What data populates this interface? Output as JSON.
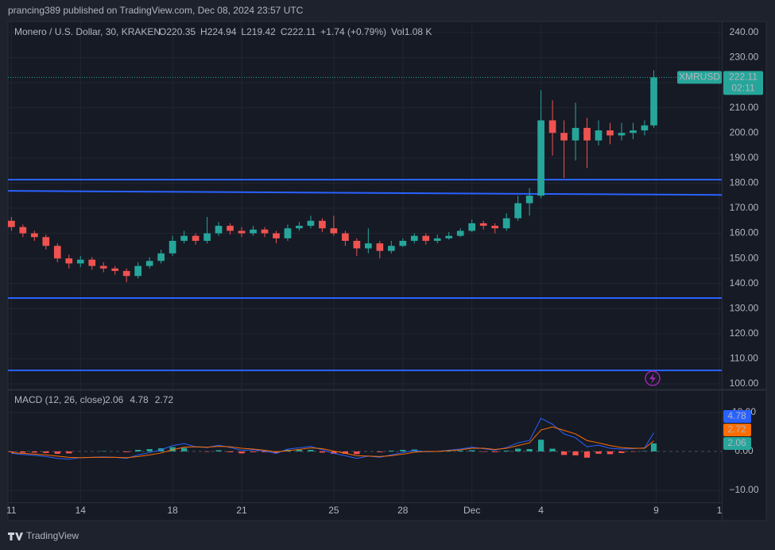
{
  "header": {
    "published": "prancing389 published on TradingView.com, Dec 08, 2024 23:57 UTC"
  },
  "footer": {
    "brand": "TradingView"
  },
  "chart_data": [
    {
      "type": "candlestick",
      "title": "Monero / U.S. Dollar, 30, KRAKEN",
      "ohlc": [
        {
          "label": "O",
          "value": "220.35"
        },
        {
          "label": "H",
          "value": "224.94"
        },
        {
          "label": "L",
          "value": "219.42"
        },
        {
          "label": "C",
          "value": "222.11"
        },
        {
          "value": "+1.74 (+0.79%)"
        },
        {
          "label": "Vol",
          "value": "1.08 K"
        }
      ],
      "symbol": "XMRUSD",
      "last_price": 222.11,
      "countdown": "02:11",
      "color_up": "#26a69a",
      "color_down": "#ef5350",
      "x": [
        0,
        0.5,
        1,
        1.5,
        2,
        2.5,
        3,
        3.5,
        4,
        4.5,
        5,
        5.5,
        6,
        6.5,
        7,
        7.5,
        8,
        8.5,
        9,
        9.5,
        10,
        10.5,
        11,
        11.5,
        12,
        12.5,
        13,
        13.5,
        14,
        14.5,
        15,
        15.5,
        16,
        16.5,
        17,
        17.5,
        18,
        18.5,
        19,
        19.5,
        20,
        20.5,
        21,
        21.5,
        22,
        22.5,
        23,
        23.5,
        24,
        24.5,
        25,
        25.5,
        26,
        26.5,
        27,
        27.5,
        27.9
      ],
      "open": [
        165,
        162.5,
        160,
        158.5,
        155,
        150,
        148,
        149.5,
        147,
        146,
        145,
        143,
        147,
        149,
        152,
        157,
        159,
        157,
        160,
        163,
        161,
        160,
        161.5,
        160,
        158,
        162,
        163,
        165,
        162,
        160,
        157,
        154,
        156,
        153,
        155,
        157,
        159,
        157,
        158,
        159,
        161,
        164,
        163,
        162,
        166,
        172,
        175,
        205,
        200,
        197,
        202,
        197,
        201,
        199,
        200,
        201,
        203
      ],
      "high": [
        166.5,
        163.5,
        161,
        159.5,
        156,
        151.5,
        151,
        150.5,
        148.5,
        147,
        146,
        148.5,
        150.5,
        153.5,
        159,
        161,
        160,
        166.5,
        164.5,
        164,
        162.5,
        163,
        162.5,
        161,
        163.5,
        164.5,
        167,
        166,
        167,
        161,
        158,
        162,
        157,
        157,
        158,
        160,
        160,
        159.5,
        160.5,
        162,
        165.5,
        165,
        164,
        168,
        175,
        178,
        217,
        213,
        205,
        212,
        206,
        205,
        204,
        204,
        204,
        205,
        224.94
      ],
      "low": [
        161,
        158.5,
        157,
        153.5,
        148.5,
        146,
        146.5,
        145.5,
        144.5,
        143.5,
        140.5,
        142,
        146,
        148,
        151,
        156,
        155.5,
        156,
        159,
        159.5,
        158.5,
        159,
        158.5,
        156,
        157,
        161,
        162,
        160.5,
        159,
        155,
        151,
        152,
        150,
        152,
        154.5,
        156,
        155.5,
        156,
        157.5,
        158.5,
        160.5,
        161.5,
        160,
        161,
        165,
        167,
        174,
        191,
        182,
        189,
        186,
        195,
        195.5,
        197,
        197.5,
        199,
        202
      ],
      "close": [
        162.5,
        160,
        158.5,
        155,
        150,
        148,
        149.5,
        147,
        146,
        145,
        143,
        147,
        149,
        152,
        157,
        159,
        157,
        160,
        163,
        161,
        160,
        161.5,
        160,
        158,
        162,
        163,
        165,
        162,
        160,
        157,
        154,
        156,
        153,
        155,
        157,
        159,
        157,
        158,
        159,
        161,
        164,
        163,
        162,
        166,
        172,
        175,
        205,
        200,
        197,
        202,
        197,
        201,
        199,
        200,
        201,
        203,
        222.11
      ],
      "horizontal_lines": {
        "color": "#2962ff",
        "lines": [
          {
            "y": [
              181.4,
              181.4
            ]
          },
          {
            "y": [
              176.9,
              175.3
            ]
          },
          {
            "y": [
              134.2,
              134.2
            ]
          },
          {
            "y": [
              105.4,
              105.4
            ]
          }
        ]
      },
      "xlim": [
        -0.15,
        30.85
      ],
      "xticks": [
        {
          "value": 0,
          "label": "11"
        },
        {
          "value": 3,
          "label": "14"
        },
        {
          "value": 7,
          "label": "18"
        },
        {
          "value": 10,
          "label": "21"
        },
        {
          "value": 14,
          "label": "25"
        },
        {
          "value": 17,
          "label": "28"
        },
        {
          "value": 20,
          "label": "Dec"
        },
        {
          "value": 23,
          "label": "4"
        },
        {
          "value": 28,
          "label": "9"
        },
        {
          "value": 30.75,
          "label": "1"
        }
      ],
      "ylim": [
        97.8,
        244.4
      ],
      "yticks": [
        {
          "value": 100,
          "label": "100.00"
        },
        {
          "value": 110,
          "label": "110.00"
        },
        {
          "value": 120,
          "label": "120.00"
        },
        {
          "value": 130,
          "label": "130.00"
        },
        {
          "value": 140,
          "label": "140.00"
        },
        {
          "value": 150,
          "label": "150.00"
        },
        {
          "value": 160,
          "label": "160.00"
        },
        {
          "value": 170,
          "label": "170.00"
        },
        {
          "value": 180,
          "label": "180.00"
        },
        {
          "value": 190,
          "label": "190.00"
        },
        {
          "value": 200,
          "label": "200.00"
        },
        {
          "value": 210,
          "label": "210.00"
        },
        {
          "value": 220,
          "label": "220.00"
        },
        {
          "value": 230,
          "label": "230.00"
        },
        {
          "value": 240,
          "label": "240.00"
        }
      ],
      "grid": true
    },
    {
      "type": "macd",
      "title": "MACD (12, 26, close)",
      "series": [
        {
          "name": "Histogram",
          "color": "#26a69a",
          "color_down": "#ff5252",
          "value_label": "2.06",
          "values": [
            -0.2,
            -0.3,
            -0.3,
            -0.4,
            -0.6,
            -0.5,
            0.0,
            0.0,
            0.1,
            0.0,
            -0.2,
            0.4,
            0.6,
            0.8,
            1.1,
            0.9,
            0.0,
            -0.1,
            0.3,
            -0.2,
            -0.5,
            -0.2,
            -0.2,
            -0.4,
            0.4,
            0.4,
            0.4,
            -0.3,
            -0.6,
            -0.6,
            -0.7,
            0.0,
            -0.2,
            0.2,
            0.4,
            0.5,
            -0.1,
            0.0,
            0.1,
            0.2,
            0.3,
            -0.1,
            -0.2,
            0.2,
            0.7,
            0.6,
            3.0,
            0.7,
            -0.9,
            -1.0,
            -1.6,
            -0.6,
            -0.7,
            -0.4,
            -0.1,
            0.1,
            2.06
          ]
        },
        {
          "name": "MACD",
          "color": "#2962ff",
          "value_label": "4.78",
          "values": [
            -0.5,
            -0.8,
            -1.0,
            -1.3,
            -1.8,
            -2.0,
            -1.6,
            -1.5,
            -1.4,
            -1.5,
            -1.8,
            -0.9,
            -0.3,
            0.4,
            1.5,
            2.0,
            1.2,
            1.0,
            1.6,
            1.0,
            0.3,
            0.4,
            0.1,
            -0.5,
            0.6,
            0.9,
            1.3,
            0.4,
            -0.5,
            -1.1,
            -1.8,
            -1.2,
            -1.5,
            -0.9,
            -0.3,
            0.3,
            -0.1,
            0.0,
            0.3,
            0.6,
            1.1,
            0.7,
            0.3,
            1.0,
            2.2,
            2.8,
            8.5,
            7.0,
            4.5,
            3.5,
            1.2,
            1.6,
            0.8,
            0.6,
            0.7,
            0.9,
            4.78
          ]
        },
        {
          "name": "Signal",
          "color": "#ff6d00",
          "value_label": "2.72",
          "values": [
            -0.3,
            -0.5,
            -0.7,
            -0.9,
            -1.2,
            -1.5,
            -1.6,
            -1.5,
            -1.5,
            -1.5,
            -1.6,
            -1.3,
            -0.9,
            -0.4,
            0.4,
            1.1,
            1.2,
            1.1,
            1.3,
            1.2,
            0.8,
            0.6,
            0.3,
            -0.1,
            0.2,
            0.5,
            0.9,
            0.7,
            0.1,
            -0.5,
            -1.1,
            -1.2,
            -1.3,
            -1.1,
            -0.7,
            -0.2,
            0.0,
            0.0,
            0.2,
            0.4,
            0.8,
            0.8,
            0.5,
            0.8,
            1.5,
            2.2,
            5.5,
            6.3,
            5.4,
            4.5,
            2.8,
            2.2,
            1.5,
            1.0,
            0.8,
            0.8,
            2.72
          ]
        }
      ],
      "ylim": [
        -13.06,
        15.7
      ],
      "yticks": [
        {
          "value": 10,
          "label": "10.00"
        },
        {
          "value": 0,
          "label": "0.00"
        },
        {
          "value": -10,
          "label": "−10.00"
        }
      ]
    }
  ]
}
